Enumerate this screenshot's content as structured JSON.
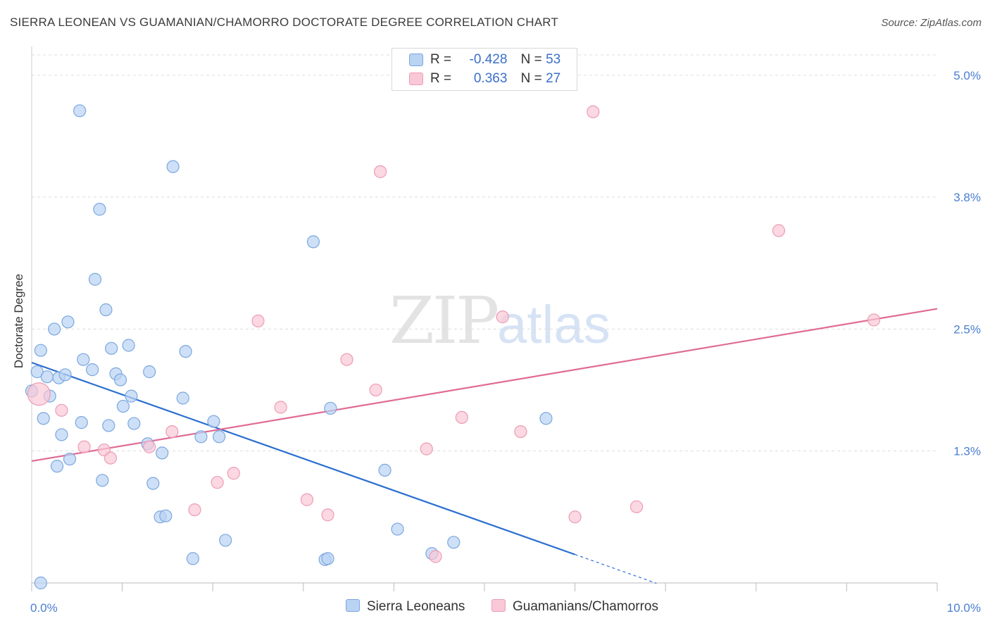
{
  "title": "SIERRA LEONEAN VS GUAMANIAN/CHAMORRO DOCTORATE DEGREE CORRELATION CHART",
  "source": "Source: ZipAtlas.com",
  "watermark": {
    "zip": "ZIP",
    "atlas": "atlas"
  },
  "legend": {
    "r_label": "R =",
    "n_label": "N =",
    "series": [
      {
        "r": "-0.428",
        "n": "53"
      },
      {
        "r": "0.363",
        "n": "27"
      }
    ]
  },
  "colors": {
    "blue_fill": "#b9d3f3",
    "blue_stroke": "#7ba7de",
    "blue_line": "#2a6fd0",
    "pink_fill": "#f9c8d6",
    "pink_stroke": "#ec9cb5",
    "pink_line": "#e06b95",
    "tick_text": "#4a7fd0",
    "grid": "#dddddd"
  },
  "chart_data": {
    "type": "scatter",
    "title": "SIERRA LEONEAN VS GUAMANIAN/CHAMORRO DOCTORATE DEGREE CORRELATION CHART",
    "xlabel": "",
    "ylabel": "Doctorate Degree",
    "xlim": [
      0,
      10
    ],
    "ylim": [
      0,
      5.2
    ],
    "x_ticks": [
      "0.0%",
      "10.0%"
    ],
    "y_ticks": [
      {
        "value": 1.3,
        "label": "1.3%"
      },
      {
        "value": 2.5,
        "label": "2.5%"
      },
      {
        "value": 3.8,
        "label": "3.8%"
      },
      {
        "value": 5.0,
        "label": "5.0%"
      }
    ],
    "grid": true,
    "legend_position": "bottom",
    "series": [
      {
        "name": "Sierra Leoneans",
        "r": -0.428,
        "n": 53,
        "points": [
          [
            0.0,
            1.89
          ],
          [
            0.06,
            2.08
          ],
          [
            0.1,
            2.29
          ],
          [
            0.13,
            1.62
          ],
          [
            0.17,
            2.03
          ],
          [
            0.2,
            1.84
          ],
          [
            0.25,
            2.5
          ],
          [
            0.28,
            1.15
          ],
          [
            0.3,
            2.02
          ],
          [
            0.33,
            1.46
          ],
          [
            0.37,
            2.05
          ],
          [
            0.4,
            2.57
          ],
          [
            0.42,
            1.22
          ],
          [
            0.53,
            4.65
          ],
          [
            0.55,
            1.58
          ],
          [
            0.57,
            2.2
          ],
          [
            0.67,
            2.1
          ],
          [
            0.7,
            2.99
          ],
          [
            0.75,
            3.68
          ],
          [
            0.78,
            1.01
          ],
          [
            0.82,
            2.69
          ],
          [
            0.85,
            1.55
          ],
          [
            0.88,
            2.31
          ],
          [
            0.93,
            2.06
          ],
          [
            0.98,
            2.0
          ],
          [
            1.01,
            1.74
          ],
          [
            1.07,
            2.34
          ],
          [
            1.1,
            1.84
          ],
          [
            1.13,
            1.57
          ],
          [
            1.28,
            1.37
          ],
          [
            1.3,
            2.08
          ],
          [
            1.34,
            0.98
          ],
          [
            1.42,
            0.65
          ],
          [
            1.44,
            1.28
          ],
          [
            1.48,
            0.66
          ],
          [
            1.56,
            4.1
          ],
          [
            1.67,
            1.82
          ],
          [
            1.7,
            2.28
          ],
          [
            1.78,
            0.24
          ],
          [
            1.87,
            1.44
          ],
          [
            2.01,
            1.59
          ],
          [
            2.07,
            1.44
          ],
          [
            2.14,
            0.42
          ],
          [
            3.11,
            3.36
          ],
          [
            3.24,
            0.23
          ],
          [
            3.27,
            0.24
          ],
          [
            3.3,
            1.72
          ],
          [
            3.9,
            1.11
          ],
          [
            4.04,
            0.53
          ],
          [
            4.42,
            0.29
          ],
          [
            4.66,
            0.4
          ],
          [
            5.68,
            1.62
          ],
          [
            0.1,
            0.0
          ]
        ]
      },
      {
        "name": "Guamanians/Chamorros",
        "r": 0.363,
        "n": 27,
        "points": [
          [
            0.08,
            1.86
          ],
          [
            0.33,
            1.7
          ],
          [
            0.58,
            1.34
          ],
          [
            0.8,
            1.31
          ],
          [
            0.87,
            1.23
          ],
          [
            1.3,
            1.34
          ],
          [
            1.55,
            1.49
          ],
          [
            1.8,
            0.72
          ],
          [
            2.05,
            0.99
          ],
          [
            2.23,
            1.08
          ],
          [
            2.5,
            2.58
          ],
          [
            2.75,
            1.73
          ],
          [
            3.04,
            0.82
          ],
          [
            3.27,
            0.67
          ],
          [
            3.48,
            2.2
          ],
          [
            3.8,
            1.9
          ],
          [
            3.85,
            4.05
          ],
          [
            4.36,
            1.32
          ],
          [
            4.46,
            0.26
          ],
          [
            4.75,
            1.63
          ],
          [
            5.2,
            2.62
          ],
          [
            5.4,
            1.49
          ],
          [
            6.0,
            0.65
          ],
          [
            6.2,
            4.64
          ],
          [
            6.68,
            0.75
          ],
          [
            8.25,
            3.47
          ],
          [
            9.3,
            2.59
          ]
        ]
      }
    ],
    "trendlines": [
      {
        "series": "Sierra Leoneans",
        "x": [
          0.0,
          6.0
        ],
        "y": [
          2.17,
          0.28
        ],
        "dashed_extension": [
          6.0,
          6.9
        ]
      },
      {
        "series": "Guamanians/Chamorros",
        "x": [
          0.0,
          10.0
        ],
        "y": [
          1.2,
          2.7
        ]
      }
    ]
  }
}
